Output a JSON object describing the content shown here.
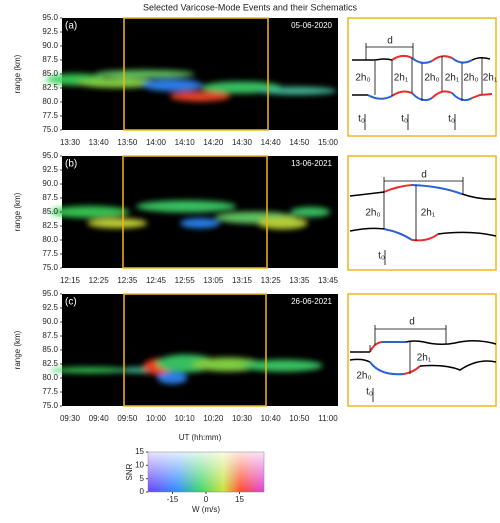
{
  "title": "Selected Varicose-Mode Events and their Schematics",
  "xlabel": "UT (hh:mm)",
  "chart_data": [
    {
      "type": "heatmap",
      "panel_label": "(a)",
      "date": "05-06-2020",
      "ylabel": "range (km)",
      "categories": [
        "13:30",
        "13:40",
        "13:50",
        "14:00",
        "14:10",
        "14:20",
        "14:30",
        "14:40",
        "14:50",
        "15:00"
      ],
      "ylim": [
        75,
        95
      ],
      "yticks": [
        {
          "value": 75,
          "label": "75.0"
        },
        {
          "value": 77.5,
          "label": "77.5"
        },
        {
          "value": 80,
          "label": "80.0"
        },
        {
          "value": 82.5,
          "label": "82.5"
        },
        {
          "value": 85,
          "label": "85.0"
        },
        {
          "value": 87.5,
          "label": "87.5"
        },
        {
          "value": 90,
          "label": "90.0"
        },
        {
          "value": 92.5,
          "label": "92.5"
        },
        {
          "value": 95,
          "label": "95.0"
        }
      ]
    },
    {
      "type": "heatmap",
      "panel_label": "(b)",
      "date": "13-06-2021",
      "ylabel": "range (km)",
      "categories": [
        "12:15",
        "12:25",
        "12:35",
        "12:45",
        "12:55",
        "13:05",
        "13:15",
        "13:25",
        "13:35",
        "13:45"
      ],
      "ylim": [
        75,
        95
      ],
      "yticks": [
        {
          "value": 75,
          "label": "75.0"
        },
        {
          "value": 77.5,
          "label": "77.5"
        },
        {
          "value": 80,
          "label": "80.0"
        },
        {
          "value": 82.5,
          "label": "82.5"
        },
        {
          "value": 85,
          "label": "85.0"
        },
        {
          "value": 87.5,
          "label": "87.5"
        },
        {
          "value": 90,
          "label": "90.0"
        },
        {
          "value": 92.5,
          "label": "92.5"
        },
        {
          "value": 95,
          "label": "95.0"
        }
      ]
    },
    {
      "type": "heatmap",
      "panel_label": "(c)",
      "date": "26-06-2021",
      "ylabel": "range (km)",
      "categories": [
        "09:30",
        "09:40",
        "09:50",
        "10:00",
        "10:10",
        "10:20",
        "10:30",
        "10:40",
        "10:50",
        "11:00"
      ],
      "ylim": [
        75,
        95
      ],
      "yticks": [
        {
          "value": 75,
          "label": "75.0"
        },
        {
          "value": 77.5,
          "label": "77.5"
        },
        {
          "value": 80,
          "label": "80.0"
        },
        {
          "value": 82.5,
          "label": "82.5"
        },
        {
          "value": 85,
          "label": "85.0"
        },
        {
          "value": 87.5,
          "label": "87.5"
        },
        {
          "value": 90,
          "label": "90.0"
        },
        {
          "value": 92.5,
          "label": "92.5"
        },
        {
          "value": 95,
          "label": "95.0"
        }
      ]
    }
  ],
  "schematics": [
    {
      "d": "d",
      "h_labels": [
        "2h₀",
        "2h₁",
        "2h₀",
        "2h₁",
        "2h₀",
        "2h₁"
      ],
      "t_labels": [
        "t₀",
        "t₀",
        "t₀"
      ]
    },
    {
      "d": "d",
      "h_labels": [
        "2h₀",
        "2h₁"
      ],
      "t_labels": [
        "t₀"
      ]
    },
    {
      "d": "d",
      "h_labels": [
        "2h₁",
        "2h₀"
      ],
      "t_labels": [
        "t₀"
      ]
    }
  ],
  "colorbar": {
    "ylabel": "SNR",
    "xlabel": "W (m/s)",
    "ylim": [
      0,
      15
    ],
    "yticks": [
      0,
      5,
      10,
      15
    ],
    "xlim": [
      -26,
      26
    ],
    "xticks": [
      -15,
      0,
      15
    ]
  }
}
